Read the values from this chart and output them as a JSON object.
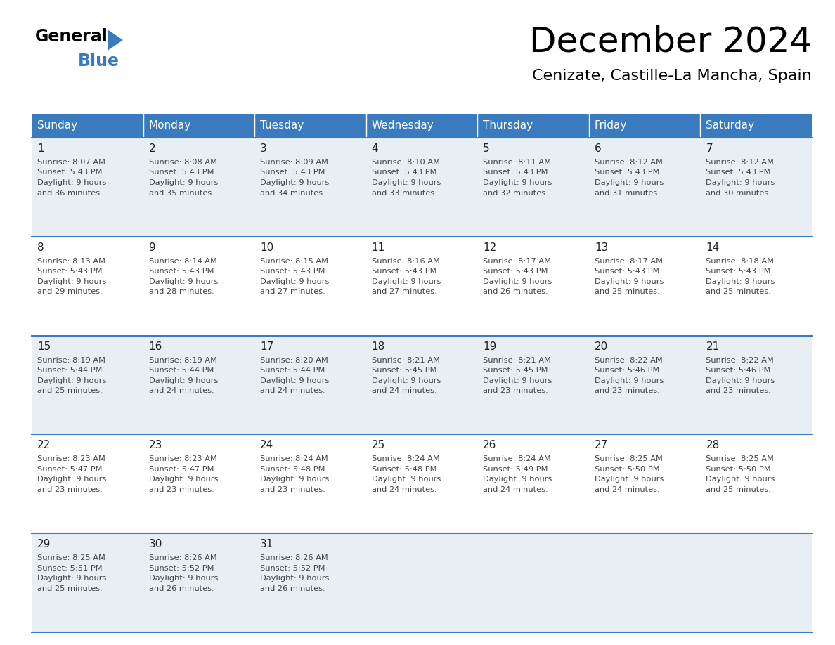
{
  "title": "December 2024",
  "subtitle": "Cenizate, Castille-La Mancha, Spain",
  "days_of_week": [
    "Sunday",
    "Monday",
    "Tuesday",
    "Wednesday",
    "Thursday",
    "Friday",
    "Saturday"
  ],
  "header_bg_color": "#3a7bbf",
  "header_text_color": "#ffffff",
  "row_bg_even": "#e8eef4",
  "row_bg_odd": "#ffffff",
  "cell_border_color": "#3a7bbf",
  "day_num_color": "#222222",
  "text_color": "#444444",
  "calendar_data": [
    [
      {
        "day": 1,
        "sunrise": "8:07 AM",
        "sunset": "5:43 PM",
        "daylight": "9 hours and 36 minutes."
      },
      {
        "day": 2,
        "sunrise": "8:08 AM",
        "sunset": "5:43 PM",
        "daylight": "9 hours and 35 minutes."
      },
      {
        "day": 3,
        "sunrise": "8:09 AM",
        "sunset": "5:43 PM",
        "daylight": "9 hours and 34 minutes."
      },
      {
        "day": 4,
        "sunrise": "8:10 AM",
        "sunset": "5:43 PM",
        "daylight": "9 hours and 33 minutes."
      },
      {
        "day": 5,
        "sunrise": "8:11 AM",
        "sunset": "5:43 PM",
        "daylight": "9 hours and 32 minutes."
      },
      {
        "day": 6,
        "sunrise": "8:12 AM",
        "sunset": "5:43 PM",
        "daylight": "9 hours and 31 minutes."
      },
      {
        "day": 7,
        "sunrise": "8:12 AM",
        "sunset": "5:43 PM",
        "daylight": "9 hours and 30 minutes."
      }
    ],
    [
      {
        "day": 8,
        "sunrise": "8:13 AM",
        "sunset": "5:43 PM",
        "daylight": "9 hours and 29 minutes."
      },
      {
        "day": 9,
        "sunrise": "8:14 AM",
        "sunset": "5:43 PM",
        "daylight": "9 hours and 28 minutes."
      },
      {
        "day": 10,
        "sunrise": "8:15 AM",
        "sunset": "5:43 PM",
        "daylight": "9 hours and 27 minutes."
      },
      {
        "day": 11,
        "sunrise": "8:16 AM",
        "sunset": "5:43 PM",
        "daylight": "9 hours and 27 minutes."
      },
      {
        "day": 12,
        "sunrise": "8:17 AM",
        "sunset": "5:43 PM",
        "daylight": "9 hours and 26 minutes."
      },
      {
        "day": 13,
        "sunrise": "8:17 AM",
        "sunset": "5:43 PM",
        "daylight": "9 hours and 25 minutes."
      },
      {
        "day": 14,
        "sunrise": "8:18 AM",
        "sunset": "5:43 PM",
        "daylight": "9 hours and 25 minutes."
      }
    ],
    [
      {
        "day": 15,
        "sunrise": "8:19 AM",
        "sunset": "5:44 PM",
        "daylight": "9 hours and 25 minutes."
      },
      {
        "day": 16,
        "sunrise": "8:19 AM",
        "sunset": "5:44 PM",
        "daylight": "9 hours and 24 minutes."
      },
      {
        "day": 17,
        "sunrise": "8:20 AM",
        "sunset": "5:44 PM",
        "daylight": "9 hours and 24 minutes."
      },
      {
        "day": 18,
        "sunrise": "8:21 AM",
        "sunset": "5:45 PM",
        "daylight": "9 hours and 24 minutes."
      },
      {
        "day": 19,
        "sunrise": "8:21 AM",
        "sunset": "5:45 PM",
        "daylight": "9 hours and 23 minutes."
      },
      {
        "day": 20,
        "sunrise": "8:22 AM",
        "sunset": "5:46 PM",
        "daylight": "9 hours and 23 minutes."
      },
      {
        "day": 21,
        "sunrise": "8:22 AM",
        "sunset": "5:46 PM",
        "daylight": "9 hours and 23 minutes."
      }
    ],
    [
      {
        "day": 22,
        "sunrise": "8:23 AM",
        "sunset": "5:47 PM",
        "daylight": "9 hours and 23 minutes."
      },
      {
        "day": 23,
        "sunrise": "8:23 AM",
        "sunset": "5:47 PM",
        "daylight": "9 hours and 23 minutes."
      },
      {
        "day": 24,
        "sunrise": "8:24 AM",
        "sunset": "5:48 PM",
        "daylight": "9 hours and 23 minutes."
      },
      {
        "day": 25,
        "sunrise": "8:24 AM",
        "sunset": "5:48 PM",
        "daylight": "9 hours and 24 minutes."
      },
      {
        "day": 26,
        "sunrise": "8:24 AM",
        "sunset": "5:49 PM",
        "daylight": "9 hours and 24 minutes."
      },
      {
        "day": 27,
        "sunrise": "8:25 AM",
        "sunset": "5:50 PM",
        "daylight": "9 hours and 24 minutes."
      },
      {
        "day": 28,
        "sunrise": "8:25 AM",
        "sunset": "5:50 PM",
        "daylight": "9 hours and 25 minutes."
      }
    ],
    [
      {
        "day": 29,
        "sunrise": "8:25 AM",
        "sunset": "5:51 PM",
        "daylight": "9 hours and 25 minutes."
      },
      {
        "day": 30,
        "sunrise": "8:26 AM",
        "sunset": "5:52 PM",
        "daylight": "9 hours and 26 minutes."
      },
      {
        "day": 31,
        "sunrise": "8:26 AM",
        "sunset": "5:52 PM",
        "daylight": "9 hours and 26 minutes."
      },
      null,
      null,
      null,
      null
    ]
  ],
  "logo_triangle_color": "#3a7bbf",
  "title_fontsize": 36,
  "subtitle_fontsize": 16,
  "header_fontsize": 11,
  "day_num_fontsize": 11,
  "cell_fontsize": 8.2
}
